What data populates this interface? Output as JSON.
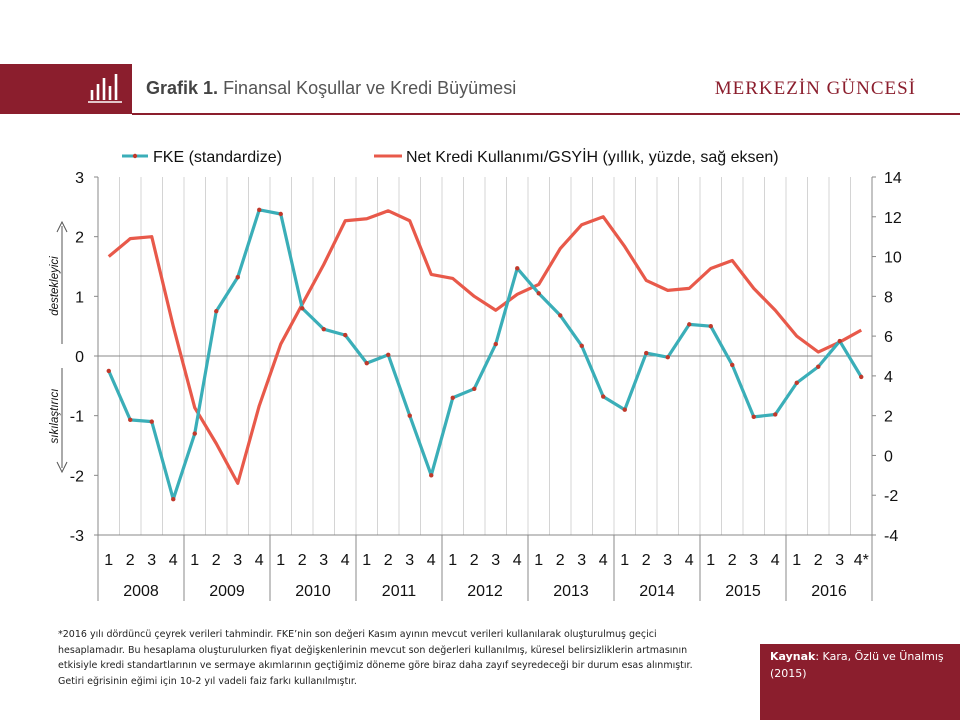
{
  "header": {
    "title_bold": "Grafik 1.",
    "title_rest": "Finansal Koşullar ve Kredi Büyümesi",
    "brand": "MERKEZİN GÜNCESİ",
    "logo_icon": "bar-chart-logo-icon"
  },
  "colors": {
    "brand": "#8b1e2d",
    "fke": "#3aaeb8",
    "credit": "#e8594a",
    "marker": "#c0392b"
  },
  "chart_data": {
    "type": "line",
    "quarters": [
      "1",
      "2",
      "3",
      "4",
      "1",
      "2",
      "3",
      "4",
      "1",
      "2",
      "3",
      "4",
      "1",
      "2",
      "3",
      "4",
      "1",
      "2",
      "3",
      "4",
      "1",
      "2",
      "3",
      "4",
      "1",
      "2",
      "3",
      "4",
      "1",
      "2",
      "3",
      "4",
      "1",
      "2",
      "3",
      "4*"
    ],
    "years": [
      "2008",
      "2009",
      "2010",
      "2011",
      "2012",
      "2013",
      "2014",
      "2015",
      "2016"
    ],
    "left_axis": {
      "ylim": [
        -3,
        3
      ],
      "ticks": [
        "3",
        "2",
        "1",
        "0",
        "-1",
        "-2",
        "-3"
      ],
      "label_upper": "destekleyici",
      "label_lower": "sıkılaştırıcı"
    },
    "right_axis": {
      "ylim": [
        -4,
        14
      ],
      "ticks": [
        "14",
        "12",
        "10",
        "8",
        "6",
        "4",
        "2",
        "0",
        "-2",
        "-4"
      ]
    },
    "grid": "vertical",
    "legend_position": "top",
    "series": [
      {
        "name": "FKE (standardize)",
        "axis": "left",
        "markers": true,
        "values": [
          -0.25,
          -1.07,
          -1.1,
          -2.4,
          -1.3,
          0.75,
          1.32,
          2.45,
          2.38,
          0.8,
          0.45,
          0.35,
          -0.12,
          0.02,
          -1.0,
          -2.0,
          -0.7,
          -0.55,
          0.2,
          1.47,
          1.05,
          0.68,
          0.17,
          -0.68,
          -0.9,
          0.05,
          -0.02,
          0.53,
          0.5,
          -0.15,
          -1.02,
          -0.98,
          -0.45,
          -0.18,
          0.25,
          -0.35
        ]
      },
      {
        "name": "Net Kredi Kullanımı/GSYİH (yıllık, yüzde, sağ eksen)",
        "axis": "right",
        "markers": false,
        "values": [
          10.0,
          10.9,
          11.0,
          6.5,
          2.4,
          0.6,
          -1.4,
          2.5,
          5.6,
          7.6,
          9.6,
          11.8,
          11.9,
          12.3,
          11.8,
          9.1,
          8.9,
          8.0,
          7.3,
          8.1,
          8.6,
          10.4,
          11.6,
          12.0,
          10.5,
          8.8,
          8.3,
          8.4,
          9.4,
          9.8,
          8.4,
          7.3,
          6.0,
          5.2,
          5.7,
          6.3
        ]
      }
    ]
  },
  "footnote": "*2016 yılı dördüncü çeyrek verileri tahmindir. FKE’nin son değeri Kasım ayının mevcut  verileri kullanılarak oluşturulmuş geçici hesaplamadır. Bu hesaplama oluşturulurken fiyat değişkenlerinin mevcut son değerleri kullanılmış, küresel belirsizliklerin artmasının etkisiyle kredi standartlarının ve sermaye akımlarının geçtiğimiz döneme  göre biraz daha zayıf seyredeceği bir durum esas alınmıştır. Getiri eğrisinin eğimi için 10-2 yıl vadeli faiz farkı kullanılmıştır.",
  "source": {
    "label": "Kaynak",
    "text": ": Kara, Özlü ve Ünalmış (2015)"
  }
}
